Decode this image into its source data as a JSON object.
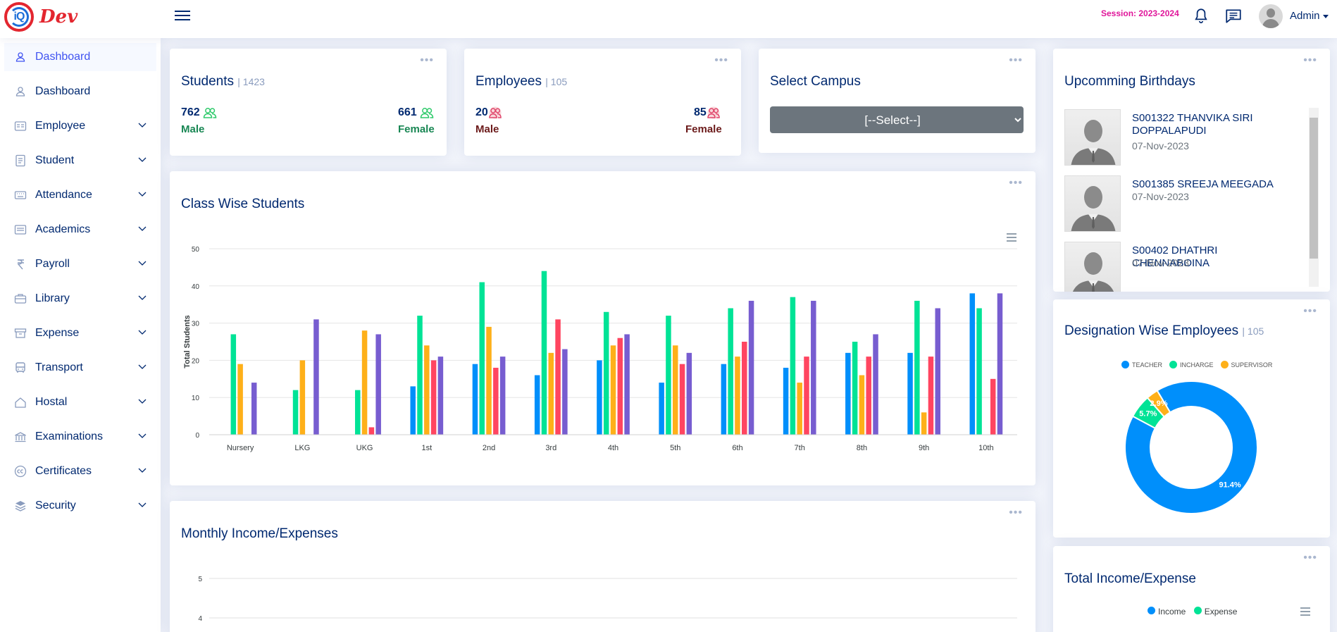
{
  "header": {
    "logo_initials": "iQ",
    "logo_text": "Dev",
    "session": "Session: 2023-2024",
    "user": "Admin"
  },
  "sidebar": {
    "items": [
      {
        "label": "Dashboard",
        "icon": "user-icon",
        "active": true
      },
      {
        "label": "Dashboard",
        "icon": "user-icon"
      },
      {
        "label": "Employee",
        "icon": "id-card-icon"
      },
      {
        "label": "Student",
        "icon": "document-icon"
      },
      {
        "label": "Attendance",
        "icon": "keyboard-icon"
      },
      {
        "label": "Academics",
        "icon": "list-icon"
      },
      {
        "label": "Payroll",
        "icon": "rupee-icon"
      },
      {
        "label": "Library",
        "icon": "briefcase-icon"
      },
      {
        "label": "Expense",
        "icon": "archive-icon"
      },
      {
        "label": "Transport",
        "icon": "bus-icon"
      },
      {
        "label": "Hostal",
        "icon": "house-icon"
      },
      {
        "label": "Examinations",
        "icon": "bank-icon"
      },
      {
        "label": "Certificates",
        "icon": "cc-icon"
      },
      {
        "label": "Security",
        "icon": "layers-icon"
      }
    ]
  },
  "students_card": {
    "title": "Students",
    "total": "| 1423",
    "male_count": "762",
    "male_label": "Male",
    "female_count": "661",
    "female_label": "Female"
  },
  "employees_card": {
    "title": "Employees",
    "total": "| 105",
    "male_count": "20",
    "male_label": "Male",
    "female_count": "85",
    "female_label": "Female"
  },
  "campus_card": {
    "title": "Select Campus",
    "selected": "[--Select--]"
  },
  "class_chart_card": {
    "title": "Class Wise Students"
  },
  "monthly_card": {
    "title": "Monthly Income/Expenses",
    "y_ticks": [
      "5",
      "4"
    ]
  },
  "birthdays_card": {
    "title": "Upcomming Birthdays",
    "items": [
      {
        "name": "S001322 THANVIKA SIRI DOPPALAPUDI",
        "date": "07-Nov-2023"
      },
      {
        "name": "S001385 SREEJA MEEGADA",
        "date": "07-Nov-2023"
      },
      {
        "name": "S00402 DHATHRI CHENNABOINA",
        "date": "07-Nov-2023"
      }
    ]
  },
  "designation_card": {
    "title": "Designation Wise Employees",
    "total": "| 105"
  },
  "total_income_card": {
    "title": "Total Income/Expense",
    "legend": [
      "Income",
      "Expense"
    ]
  },
  "colors": {
    "series": [
      "#008ffb",
      "#00e396",
      "#feb019",
      "#ff4560",
      "#775dd0"
    ]
  },
  "chart_data": [
    {
      "type": "bar",
      "ylabel": "Total Students",
      "ylim": [
        0,
        50
      ],
      "y_ticks": [
        0,
        10,
        20,
        30,
        40,
        50
      ],
      "grid": true,
      "categories": [
        "Nursery",
        "LKG",
        "UKG",
        "1st",
        "2nd",
        "3rd",
        "4th",
        "5th",
        "6th",
        "7th",
        "8th",
        "9th",
        "10th"
      ],
      "series": [
        {
          "values": [
            0,
            0,
            0,
            13,
            19,
            16,
            20,
            14,
            19,
            18,
            22,
            22,
            38
          ]
        },
        {
          "values": [
            27,
            12,
            12,
            32,
            41,
            44,
            33,
            32,
            34,
            37,
            25,
            36,
            34
          ]
        },
        {
          "values": [
            19,
            20,
            28,
            24,
            29,
            22,
            24,
            24,
            21,
            14,
            16,
            6,
            0
          ]
        },
        {
          "values": [
            0,
            0,
            2,
            20,
            18,
            31,
            26,
            19,
            25,
            21,
            21,
            21,
            15
          ]
        },
        {
          "values": [
            14,
            31,
            27,
            21,
            21,
            23,
            27,
            22,
            36,
            36,
            27,
            34,
            38
          ]
        }
      ]
    },
    {
      "type": "pie",
      "categories": [
        "TEACHER",
        "INCHARGE",
        "SUPERVISOR"
      ],
      "values": [
        91.4,
        5.7,
        2.9
      ],
      "data_labels": [
        "91.4%",
        "5.7%",
        "2.9%"
      ],
      "legend": "top"
    }
  ]
}
